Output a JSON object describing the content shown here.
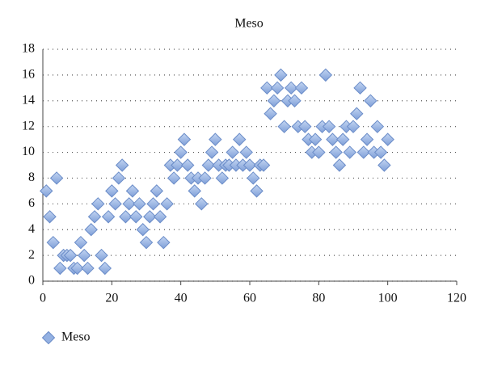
{
  "chart_data": {
    "type": "scatter",
    "title": "Meso",
    "series": [
      {
        "name": "Meso",
        "color": "#94b1e2",
        "x": [
          1,
          2,
          3,
          4,
          5,
          6,
          7,
          8,
          9,
          10,
          11,
          12,
          13,
          14,
          15,
          16,
          17,
          18,
          19,
          20,
          21,
          22,
          23,
          24,
          25,
          26,
          27,
          28,
          29,
          30,
          31,
          32,
          33,
          34,
          35,
          36,
          37,
          38,
          39,
          40,
          41,
          42,
          43,
          44,
          45,
          46,
          47,
          48,
          49,
          50,
          51,
          52,
          53,
          54,
          55,
          56,
          57,
          58,
          59,
          60,
          61,
          62,
          63,
          64,
          65,
          66,
          67,
          68,
          69,
          70,
          71,
          72,
          73,
          74,
          75,
          76,
          77,
          78,
          79,
          80,
          81,
          82,
          83,
          84,
          85,
          86,
          87,
          88,
          89,
          90,
          91,
          92,
          93,
          94,
          95,
          96,
          97,
          98,
          99,
          100
        ],
        "values": [
          7,
          5,
          3,
          8,
          1,
          2,
          2,
          2,
          1,
          1,
          3,
          2,
          1,
          4,
          5,
          6,
          2,
          1,
          5,
          7,
          6,
          8,
          9,
          5,
          6,
          7,
          5,
          6,
          4,
          3,
          5,
          6,
          7,
          5,
          3,
          6,
          9,
          8,
          9,
          10,
          11,
          9,
          8,
          7,
          8,
          6,
          8,
          9,
          10,
          11,
          9,
          8,
          9,
          9,
          10,
          9,
          11,
          9,
          10,
          9,
          8,
          7,
          9,
          9,
          15,
          13,
          14,
          15,
          16,
          12,
          14,
          15,
          14,
          12,
          15,
          12,
          11,
          10,
          11,
          10,
          12,
          16,
          12,
          11,
          10,
          9,
          11,
          12,
          10,
          12,
          13,
          15,
          10,
          11,
          14,
          10,
          12,
          10,
          9,
          11
        ]
      }
    ],
    "xlim": [
      0,
      120
    ],
    "xticks": [
      0,
      20,
      40,
      60,
      80,
      100,
      120
    ],
    "ylim": [
      0,
      18
    ],
    "yticks": [
      0,
      2,
      4,
      6,
      8,
      10,
      12,
      14,
      16,
      18
    ],
    "grid": true,
    "legend": "bottom-left"
  }
}
